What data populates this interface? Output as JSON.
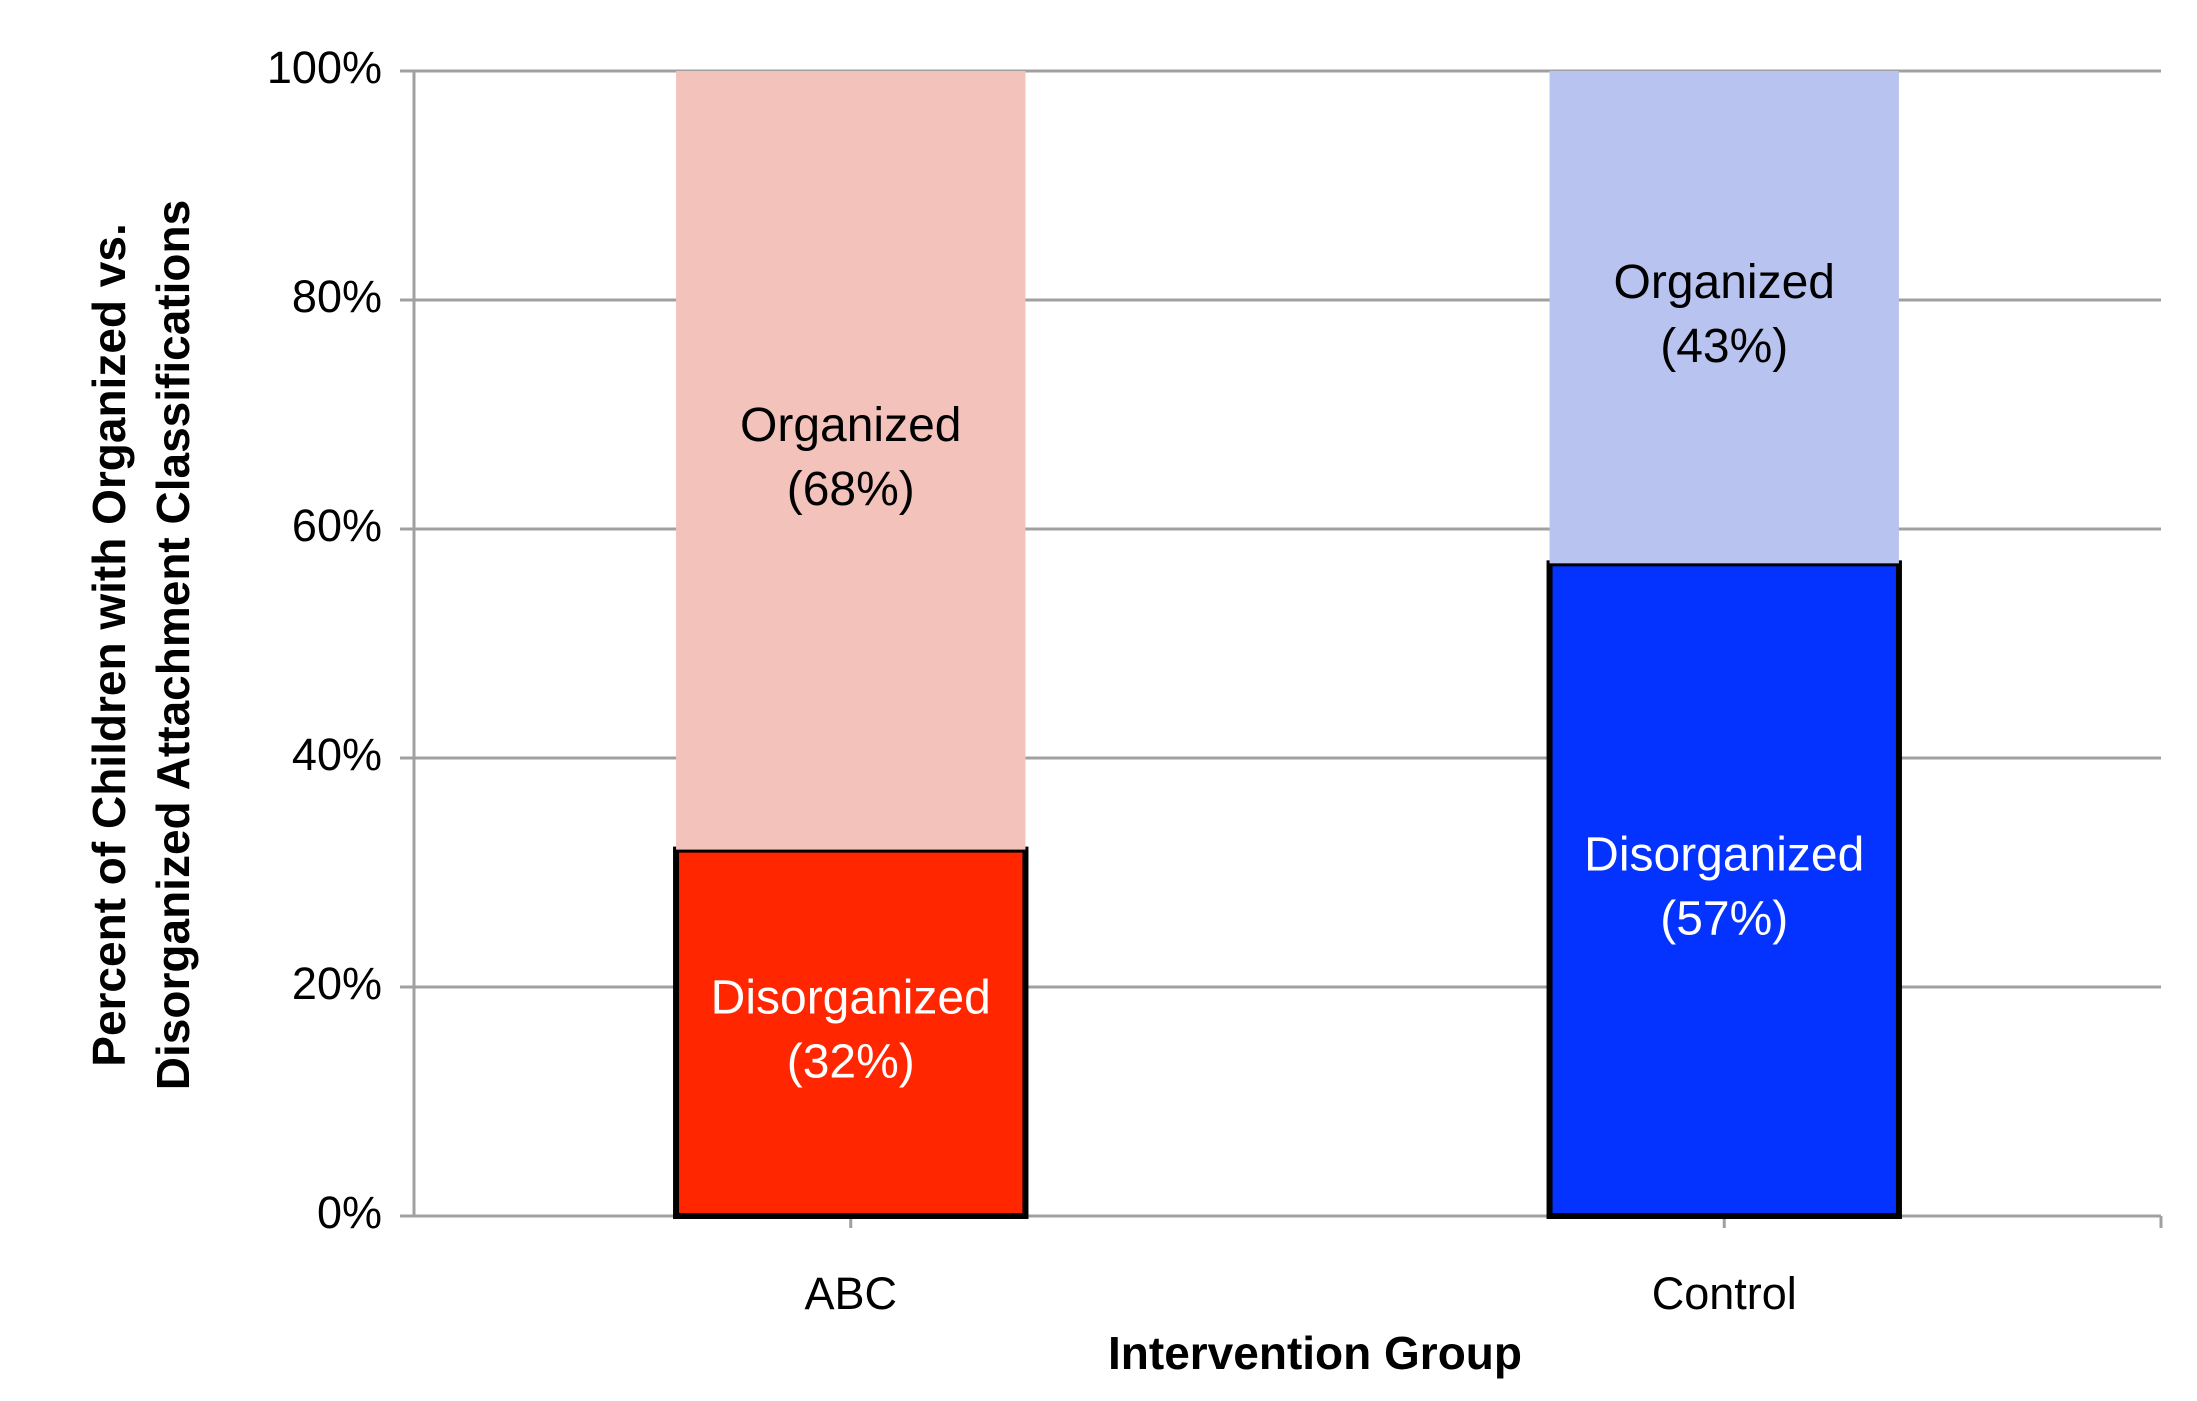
{
  "chart_data": {
    "type": "stacked_bar",
    "xlabel": "Intervention Group",
    "ylabel": [
      "Percent of Children with Organized vs.",
      "Disorganized Attachment Classifications"
    ],
    "categories": [
      "ABC",
      "Control"
    ],
    "series": [
      {
        "name": "Disorganized",
        "colors": [
          "#ff2600",
          "#0433ff"
        ],
        "values": [
          32,
          57
        ],
        "value_labels": [
          "(32%)",
          "(57%)"
        ],
        "border": true
      },
      {
        "name": "Organized",
        "colors": [
          "#f2c2bb",
          "#b8c3f0"
        ],
        "values": [
          68,
          43
        ],
        "value_labels": [
          "(68%)",
          "(43%)"
        ],
        "border": false
      }
    ],
    "ylim": [
      0,
      100
    ],
    "yticks": [
      {
        "value": 0,
        "label": "0%"
      },
      {
        "value": 20,
        "label": "20%"
      },
      {
        "value": 40,
        "label": "40%"
      },
      {
        "value": 60,
        "label": "60%"
      },
      {
        "value": 80,
        "label": "80%"
      },
      {
        "value": 100,
        "label": "100%"
      }
    ],
    "grid": true
  }
}
